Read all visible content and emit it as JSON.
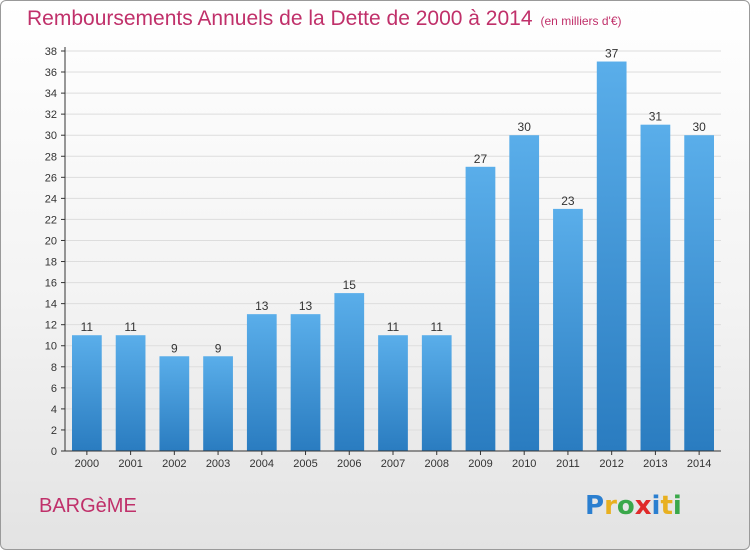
{
  "header": {
    "title": "Remboursements Annuels de la Dette de 2000 à 2014",
    "subtitle": "(en milliers d'€)"
  },
  "commune": "BARGèME",
  "logo": {
    "letters": [
      {
        "char": "P",
        "color": "#2b7fd0"
      },
      {
        "char": "r",
        "color": "#e8b020"
      },
      {
        "char": "o",
        "color": "#3aa84a"
      },
      {
        "char": "x",
        "color": "#e02a2a"
      },
      {
        "char": "i",
        "color": "#2b7fd0"
      },
      {
        "char": "t",
        "color": "#e8b020"
      },
      {
        "char": "i",
        "color": "#3aa84a"
      }
    ]
  },
  "colors": {
    "bar_top": "#5aaeea",
    "bar_bottom": "#2a7cc0",
    "axis": "#333333",
    "grid": "#dddddd",
    "title": "#c0306a"
  },
  "chart_data": {
    "type": "bar",
    "title": "Remboursements Annuels de la Dette de 2000 à 2014",
    "subtitle": "(en milliers d'€)",
    "xlabel": "",
    "ylabel": "",
    "categories": [
      "2000",
      "2001",
      "2002",
      "2003",
      "2004",
      "2005",
      "2006",
      "2007",
      "2008",
      "2009",
      "2010",
      "2011",
      "2012",
      "2013",
      "2014"
    ],
    "values": [
      11,
      11,
      9,
      9,
      13,
      13,
      15,
      11,
      11,
      27,
      30,
      23,
      37,
      31,
      30
    ],
    "ylim": [
      0,
      38
    ],
    "yticks": [
      0,
      2,
      4,
      6,
      8,
      10,
      12,
      14,
      16,
      18,
      20,
      22,
      24,
      26,
      28,
      30,
      32,
      34,
      36,
      38
    ],
    "grid": true,
    "legend": "none"
  }
}
